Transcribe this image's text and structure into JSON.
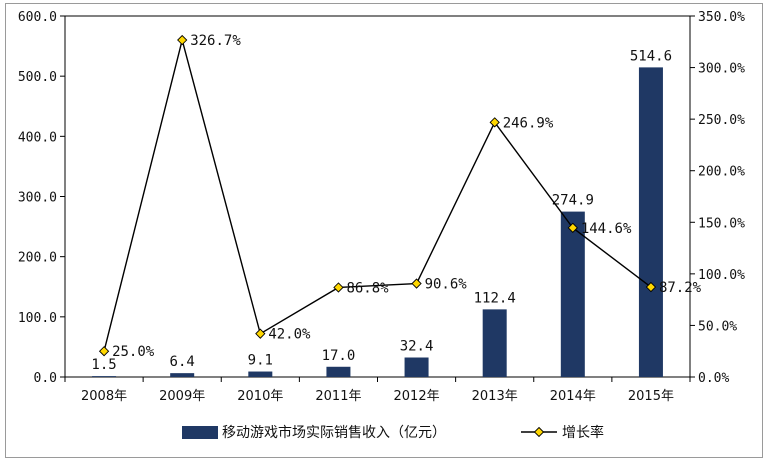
{
  "chart_data": {
    "type": "bar",
    "categories": [
      "2008年",
      "2009年",
      "2010年",
      "2011年",
      "2012年",
      "2013年",
      "2014年",
      "2015年"
    ],
    "series": [
      {
        "name": "移动游戏市场实际销售收入（亿元）",
        "type": "bar",
        "axis": "left",
        "color": "#1f3864",
        "values": [
          1.5,
          6.4,
          9.1,
          17.0,
          32.4,
          112.4,
          274.9,
          514.6
        ],
        "labels": [
          "1.5",
          "6.4",
          "9.1",
          "17.0",
          "32.4",
          "112.4",
          "274.9",
          "514.6"
        ]
      },
      {
        "name": "增长率",
        "type": "line",
        "axis": "right",
        "color": "#000000",
        "marker_color": "#ffd700",
        "values": [
          25.0,
          326.7,
          42.0,
          86.8,
          90.6,
          246.9,
          144.6,
          87.2
        ],
        "labels": [
          "25.0%",
          "326.7%",
          "42.0%",
          "86.8%",
          "90.6%",
          "246.9%",
          "144.6%",
          "87.2%"
        ]
      }
    ],
    "left_axis": {
      "ylim": [
        0,
        600
      ],
      "ticks": [
        "0.0",
        "100.0",
        "200.0",
        "300.0",
        "400.0",
        "500.0",
        "600.0"
      ]
    },
    "right_axis": {
      "ylim": [
        0,
        350
      ],
      "ticks": [
        "0.0%",
        "50.0%",
        "100.0%",
        "150.0%",
        "200.0%",
        "250.0%",
        "300.0%",
        "350.0%"
      ]
    },
    "grid": false,
    "legend_position": "bottom"
  }
}
